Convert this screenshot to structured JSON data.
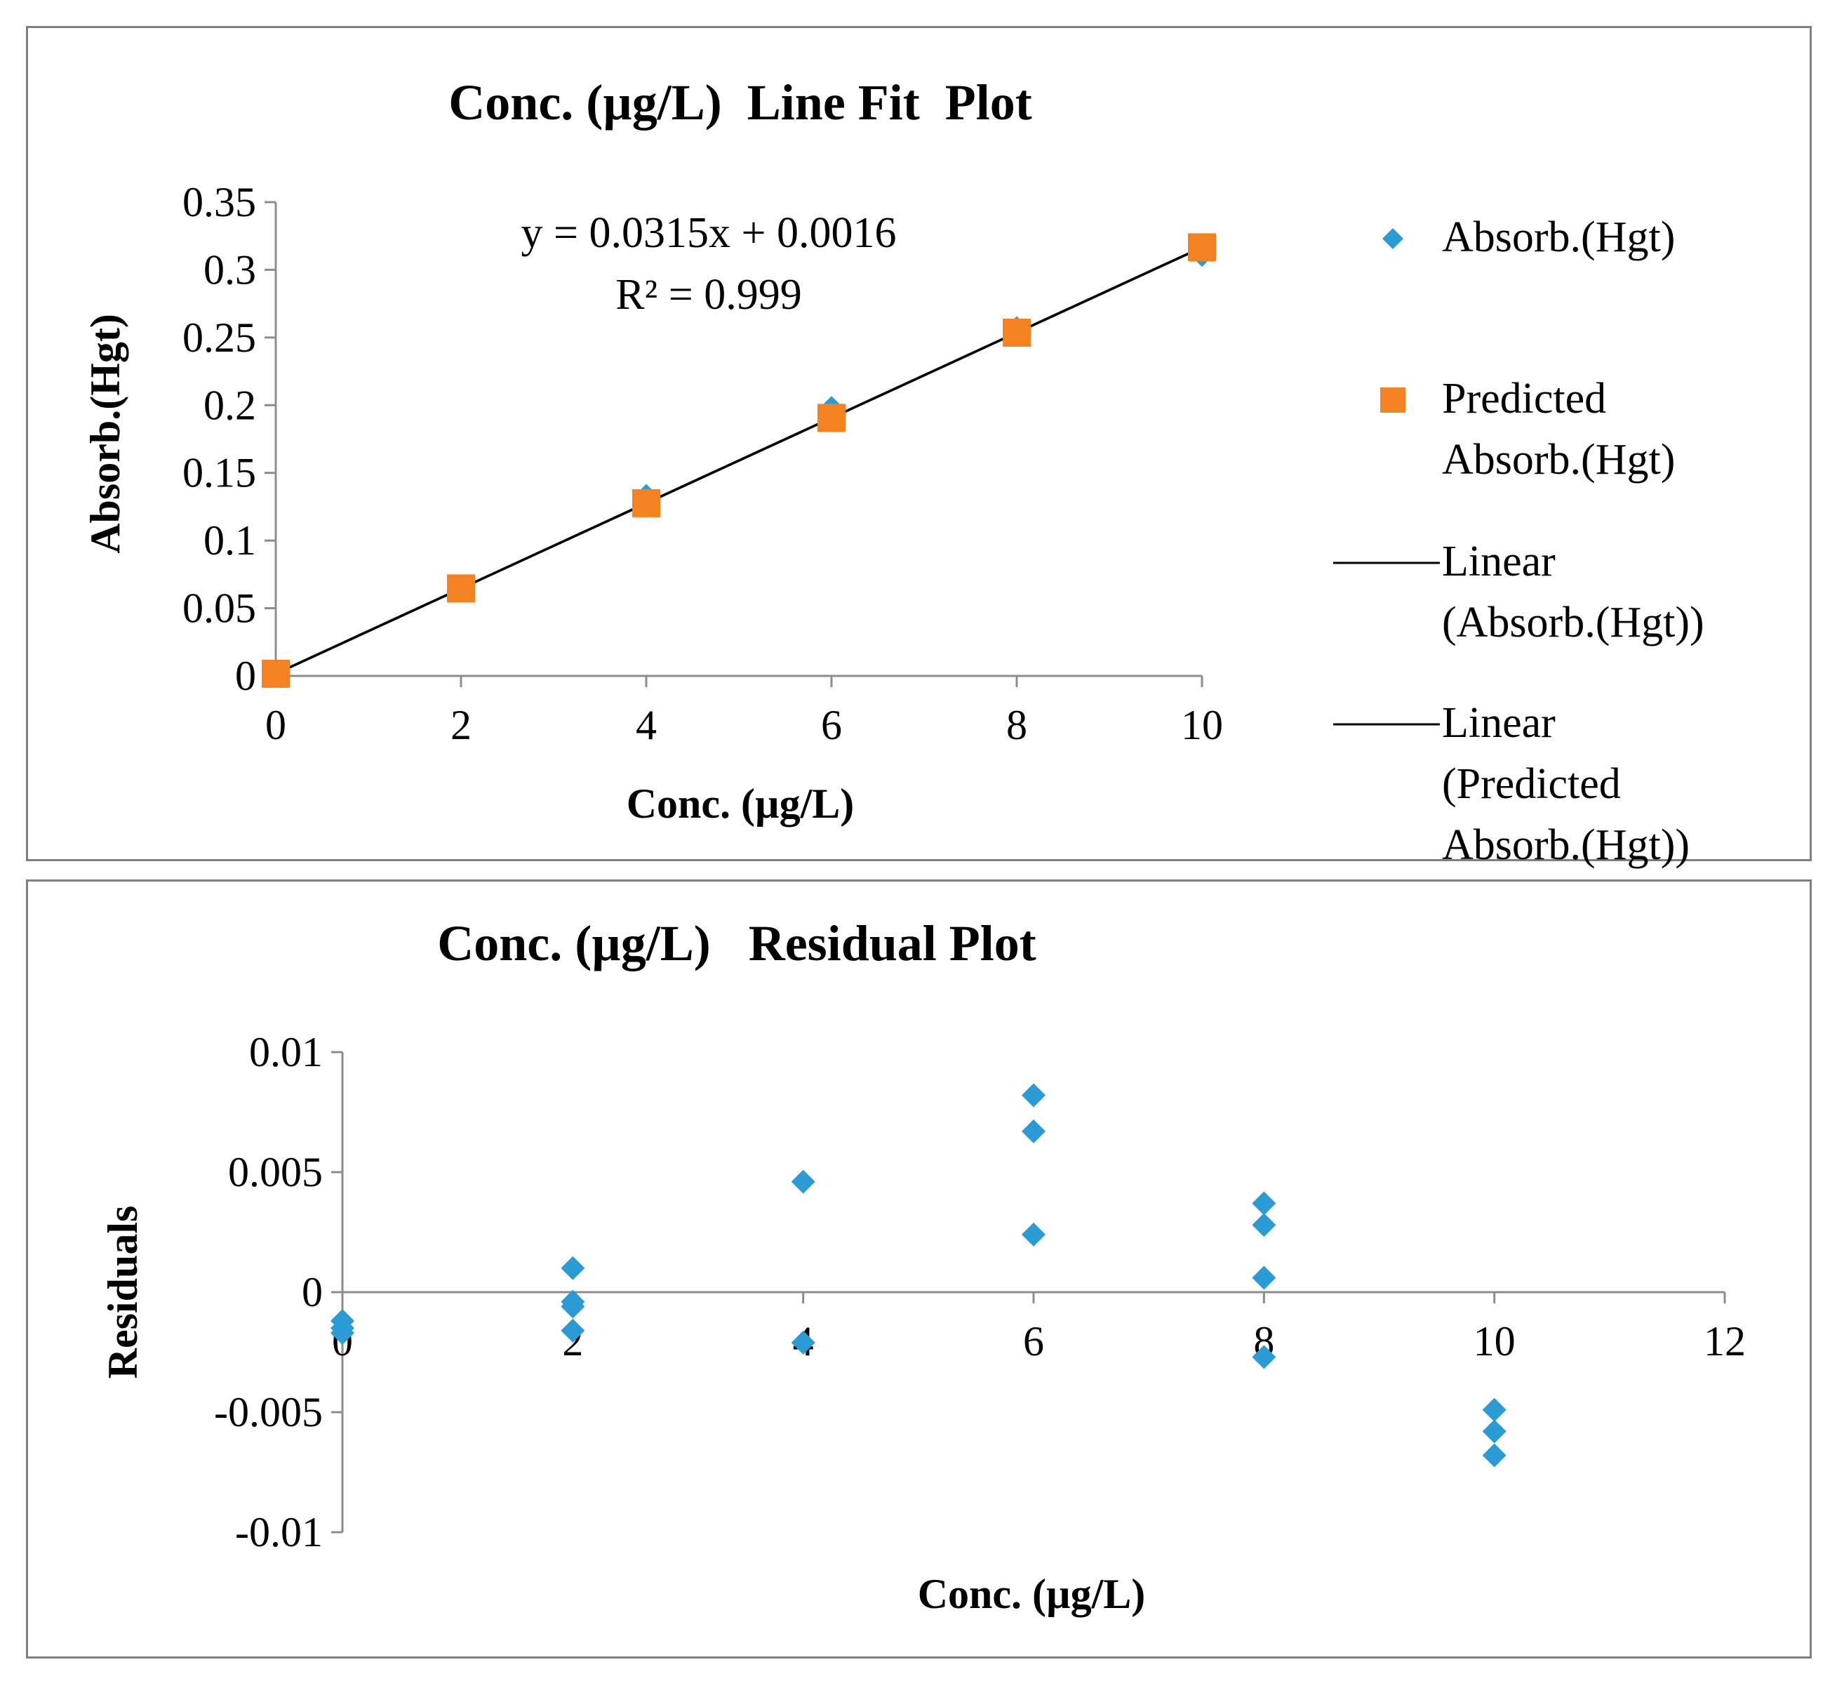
{
  "colors": {
    "absorb": "#2b9bd6",
    "predicted": "#f58220",
    "line": "#000000",
    "axis": "#8c8c8c",
    "border": "#7f7f7f"
  },
  "chart_data": [
    {
      "type": "scatter",
      "title": "Conc. (µg/L)  Line Fit  Plot",
      "xlabel": "Conc. (µg/L)",
      "ylabel": "Absorb.(Hgt)",
      "xlim": [
        0,
        10
      ],
      "ylim": [
        0,
        0.35
      ],
      "xticks": [
        0,
        2,
        4,
        6,
        8,
        10
      ],
      "yticks": [
        0,
        0.05,
        0.1,
        0.15,
        0.2,
        0.25,
        0.3,
        0.35
      ],
      "xtick_labels": [
        "0",
        "2",
        "4",
        "6",
        "8",
        "10"
      ],
      "ytick_labels": [
        "0",
        "0.05",
        "0.1",
        "0.15",
        "0.2",
        "0.25",
        "0.3",
        "0.35"
      ],
      "grid": false,
      "equation": "y = 0.0315x + 0.0016",
      "r_squared": "R² = 0.999",
      "series": [
        {
          "name": "Absorb.(Hgt)",
          "marker": "diamond",
          "x": [
            0,
            2,
            4,
            6,
            8,
            10
          ],
          "y": [
            0.001,
            0.064,
            0.133,
            0.198,
            0.257,
            0.311
          ]
        },
        {
          "name": "Predicted Absorb.(Hgt)",
          "marker": "square",
          "x": [
            0,
            2,
            4,
            6,
            8,
            10
          ],
          "y": [
            0.0016,
            0.0646,
            0.1276,
            0.1906,
            0.2536,
            0.3166
          ]
        }
      ],
      "trendlines": [
        {
          "name": "Linear (Absorb.(Hgt))",
          "slope": 0.0315,
          "intercept": 0.0016
        },
        {
          "name": "Linear (Predicted Absorb.(Hgt))",
          "slope": 0.0315,
          "intercept": 0.0016
        }
      ],
      "legend": {
        "position": "right",
        "items": [
          {
            "lines": [
              "Absorb.(Hgt)"
            ],
            "symbol": "diamond"
          },
          {
            "lines": [
              "Predicted",
              "Absorb.(Hgt)"
            ],
            "symbol": "square"
          },
          {
            "lines": [
              "Linear",
              "(Absorb.(Hgt))"
            ],
            "symbol": "line"
          },
          {
            "lines": [
              "Linear",
              "(Predicted",
              "Absorb.(Hgt))"
            ],
            "symbol": "line"
          }
        ]
      }
    },
    {
      "type": "scatter",
      "title": "Conc. (µg/L)   Residual Plot",
      "xlabel": "Conc. (µg/L)",
      "ylabel": "Residuals",
      "xlim": [
        0,
        12
      ],
      "ylim": [
        -0.01,
        0.01
      ],
      "xticks": [
        0,
        2,
        4,
        6,
        8,
        10,
        12
      ],
      "yticks": [
        -0.01,
        -0.005,
        0,
        0.005,
        0.01
      ],
      "xtick_labels": [
        "0",
        "2",
        "4",
        "6",
        "8",
        "10",
        "12"
      ],
      "ytick_labels": [
        "-0.01",
        "-0.005",
        "0",
        "0.005",
        "0.01"
      ],
      "grid": false,
      "series": [
        {
          "name": "Residuals",
          "marker": "diamond",
          "x": [
            0,
            0,
            0,
            2,
            2,
            2,
            2,
            4,
            4,
            6,
            6,
            6,
            8,
            8,
            8,
            8,
            10,
            10,
            10
          ],
          "y": [
            -0.0012,
            -0.0015,
            -0.0017,
            0.001,
            -0.0004,
            -0.0006,
            -0.0016,
            0.0046,
            -0.0021,
            0.0082,
            0.0067,
            0.0024,
            0.0037,
            0.0028,
            0.0006,
            -0.0027,
            -0.0049,
            -0.0058,
            -0.0068
          ]
        }
      ]
    }
  ]
}
